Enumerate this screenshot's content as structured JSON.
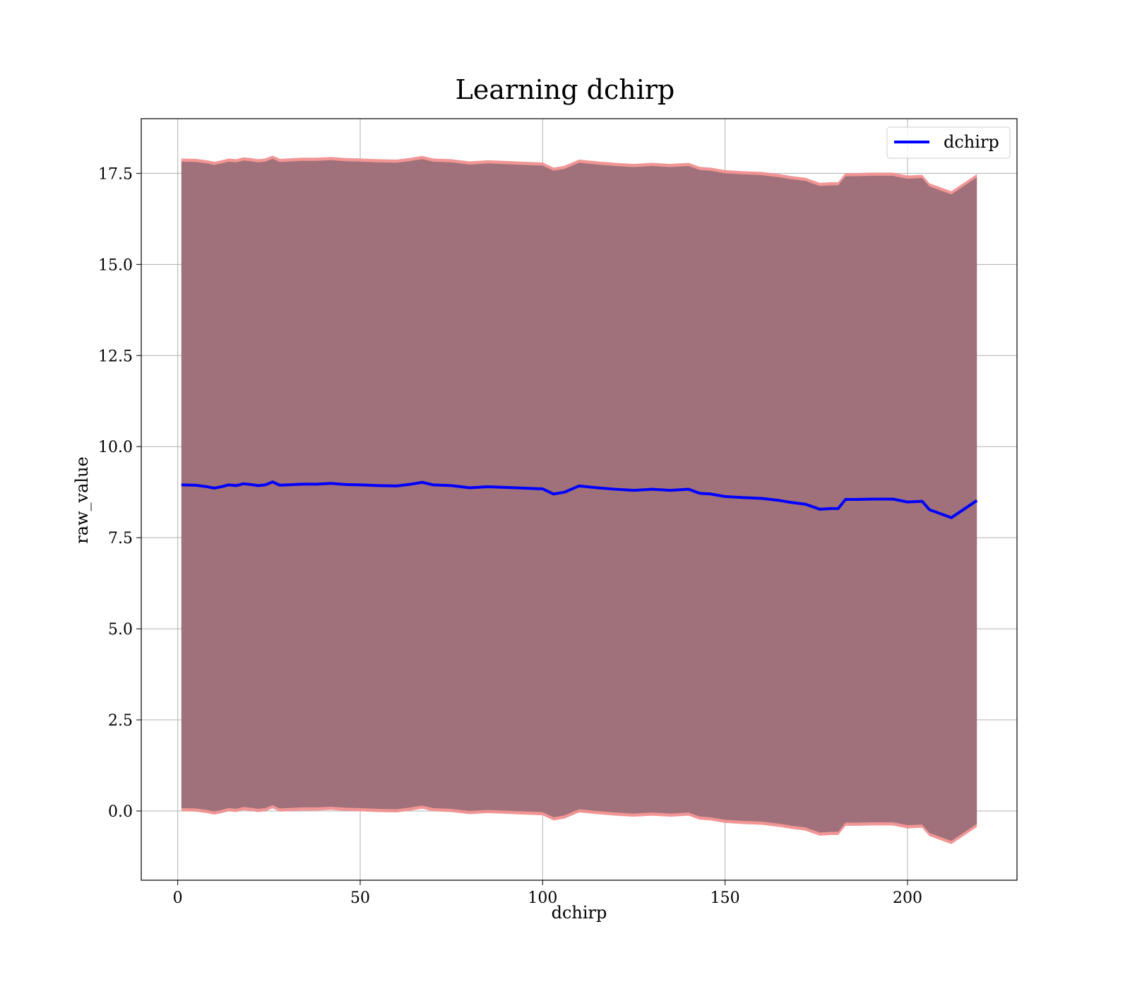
{
  "chart_data": {
    "type": "area",
    "title": "Learning dchirp",
    "xlabel": "dchirp",
    "ylabel": "raw_value",
    "xlim": [
      -10,
      230
    ],
    "ylim": [
      -1.9,
      19.0
    ],
    "xticks": [
      0,
      50,
      100,
      150,
      200
    ],
    "xtick_labels": [
      "0",
      "50",
      "100",
      "150",
      "200"
    ],
    "yticks": [
      0.0,
      2.5,
      5.0,
      7.5,
      10.0,
      12.5,
      15.0,
      17.5
    ],
    "ytick_labels": [
      "0.0",
      "2.5",
      "5.0",
      "7.5",
      "10.0",
      "12.5",
      "15.0",
      "17.5"
    ],
    "grid": true,
    "legend_position": "top-right",
    "series": [
      {
        "name": "dchirp",
        "color": "#0000ff",
        "x": [
          1,
          5,
          8,
          10,
          12,
          14,
          16,
          18,
          20,
          22,
          24,
          26,
          28,
          30,
          34,
          38,
          42,
          46,
          50,
          55,
          60,
          64,
          67,
          70,
          75,
          80,
          85,
          90,
          95,
          100,
          103,
          106,
          110,
          115,
          120,
          125,
          130,
          135,
          140,
          143,
          146,
          150,
          155,
          160,
          165,
          168,
          172,
          176,
          179,
          181,
          183,
          186,
          190,
          196,
          200,
          204,
          206,
          212,
          219
        ],
        "values": [
          8.95,
          8.94,
          8.9,
          8.86,
          8.9,
          8.95,
          8.93,
          8.98,
          8.96,
          8.93,
          8.95,
          9.03,
          8.94,
          8.95,
          8.97,
          8.97,
          8.99,
          8.96,
          8.95,
          8.93,
          8.92,
          8.97,
          9.02,
          8.95,
          8.93,
          8.87,
          8.9,
          8.88,
          8.86,
          8.84,
          8.7,
          8.75,
          8.92,
          8.87,
          8.83,
          8.8,
          8.83,
          8.8,
          8.83,
          8.72,
          8.7,
          8.63,
          8.6,
          8.58,
          8.52,
          8.47,
          8.42,
          8.28,
          8.3,
          8.3,
          8.55,
          8.55,
          8.56,
          8.56,
          8.48,
          8.5,
          8.27,
          8.05,
          8.52
        ]
      }
    ],
    "band": {
      "lower_offset": -8.9,
      "upper_offset": 8.9,
      "fill_color": "#a0717a",
      "edge_color": "#f08a8a"
    }
  }
}
